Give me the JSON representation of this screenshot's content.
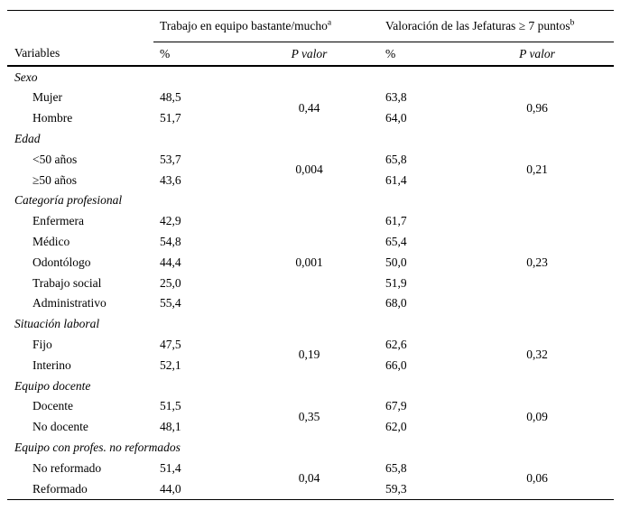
{
  "colors": {
    "background": "#ffffff",
    "text": "#000000",
    "rule": "#000000"
  },
  "table": {
    "spanners": [
      {
        "label": "Trabajo en equipo bastante/mucho",
        "sup": "a"
      },
      {
        "label": "Valoración de las Jefaturas ≥ 7 puntos",
        "sup": "b"
      }
    ],
    "col_headers": {
      "variables": "Variables",
      "pct1": "%",
      "p1": "P valor",
      "pct2": "%",
      "p2": "P valor"
    },
    "groups": [
      {
        "label": "Sexo",
        "p1": "0,44",
        "p2": "0,96",
        "rows": [
          {
            "label": "Mujer",
            "pct1": "48,5",
            "pct2": "63,8"
          },
          {
            "label": "Hombre",
            "pct1": "51,7",
            "pct2": "64,0"
          }
        ]
      },
      {
        "label": "Edad",
        "p1": "0,004",
        "p2": "0,21",
        "rows": [
          {
            "label": "<50 años",
            "pct1": "53,7",
            "pct2": "65,8"
          },
          {
            "label": "≥50 años",
            "pct1": "43,6",
            "pct2": "61,4"
          }
        ]
      },
      {
        "label": "Categoría profesional",
        "p1": "0,001",
        "p2": "0,23",
        "rows": [
          {
            "label": "Enfermera",
            "pct1": "42,9",
            "pct2": "61,7"
          },
          {
            "label": "Médico",
            "pct1": "54,8",
            "pct2": "65,4"
          },
          {
            "label": "Odontólogo",
            "pct1": "44,4",
            "pct2": "50,0"
          },
          {
            "label": "Trabajo social",
            "pct1": "25,0",
            "pct2": "51,9"
          },
          {
            "label": "Administrativo",
            "pct1": "55,4",
            "pct2": "68,0"
          }
        ]
      },
      {
        "label": "Situación laboral",
        "p1": "0,19",
        "p2": "0,32",
        "rows": [
          {
            "label": "Fijo",
            "pct1": "47,5",
            "pct2": "62,6"
          },
          {
            "label": "Interino",
            "pct1": "52,1",
            "pct2": "66,0"
          }
        ]
      },
      {
        "label": "Equipo docente",
        "p1": "0,35",
        "p2": "0,09",
        "rows": [
          {
            "label": "Docente",
            "pct1": "51,5",
            "pct2": "67,9"
          },
          {
            "label": "No docente",
            "pct1": "48,1",
            "pct2": "62,0"
          }
        ]
      },
      {
        "label": "Equipo con profes. no reformados",
        "p1": "0,04",
        "p2": "0,06",
        "rows": [
          {
            "label": "No reformado",
            "pct1": "51,4",
            "pct2": "65,8"
          },
          {
            "label": "Reformado",
            "pct1": "44,0",
            "pct2": "59,3"
          }
        ]
      }
    ]
  }
}
